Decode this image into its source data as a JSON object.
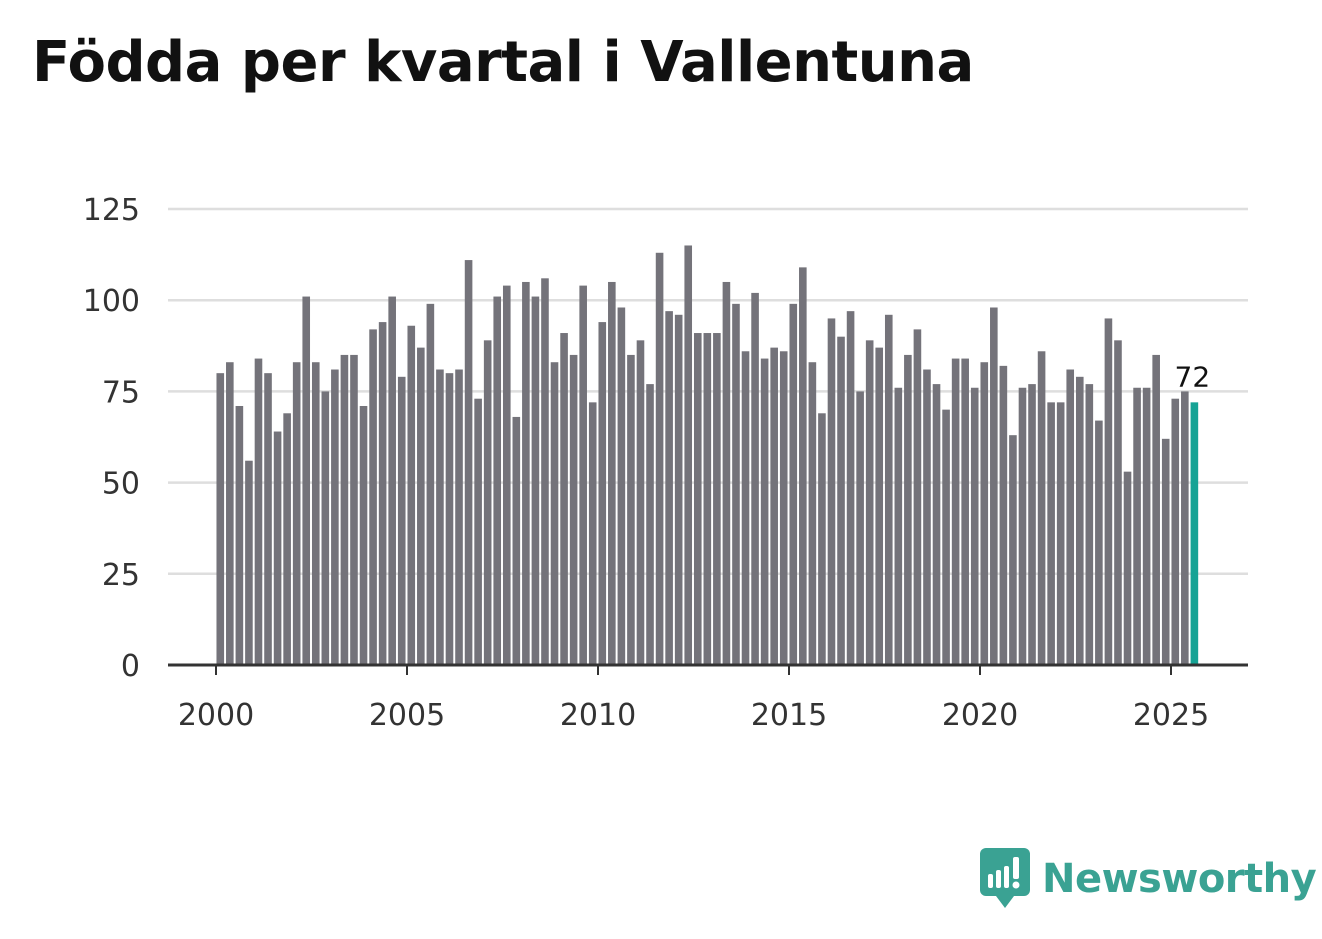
{
  "title": "Födda per kvartal i Vallentuna",
  "brand": {
    "name": "Newsworthy",
    "color": "#3aa293",
    "icon": "newsworthy-logo-icon"
  },
  "colors": {
    "bar": "#74737a",
    "highlight": "#16a395",
    "grid": "#dedede",
    "axis": "#333333"
  },
  "chart_data": {
    "type": "bar",
    "title": "Födda per kvartal i Vallentuna",
    "xlabel": "",
    "ylabel": "",
    "ylim": [
      0,
      125
    ],
    "yticks": [
      "0",
      "25",
      "50",
      "75",
      "100",
      "125"
    ],
    "xticks": [
      "2000",
      "2005",
      "2010",
      "2015",
      "2020",
      "2025"
    ],
    "start_year": 2000,
    "values": [
      80,
      83,
      71,
      56,
      84,
      80,
      64,
      69,
      83,
      101,
      83,
      75,
      81,
      85,
      85,
      71,
      92,
      94,
      101,
      79,
      93,
      87,
      99,
      81,
      80,
      81,
      111,
      73,
      89,
      101,
      104,
      68,
      105,
      101,
      106,
      83,
      91,
      85,
      104,
      72,
      94,
      105,
      98,
      85,
      89,
      77,
      113,
      97,
      96,
      115,
      91,
      91,
      91,
      105,
      99,
      86,
      102,
      84,
      87,
      86,
      99,
      109,
      83,
      69,
      95,
      90,
      97,
      75,
      89,
      87,
      96,
      76,
      85,
      92,
      81,
      77,
      70,
      84,
      84,
      76,
      83,
      98,
      82,
      63,
      76,
      77,
      86,
      72,
      72,
      81,
      79,
      77,
      67,
      95,
      89,
      53,
      76,
      76,
      85,
      62,
      73,
      75,
      72
    ],
    "highlight_label": "72"
  }
}
